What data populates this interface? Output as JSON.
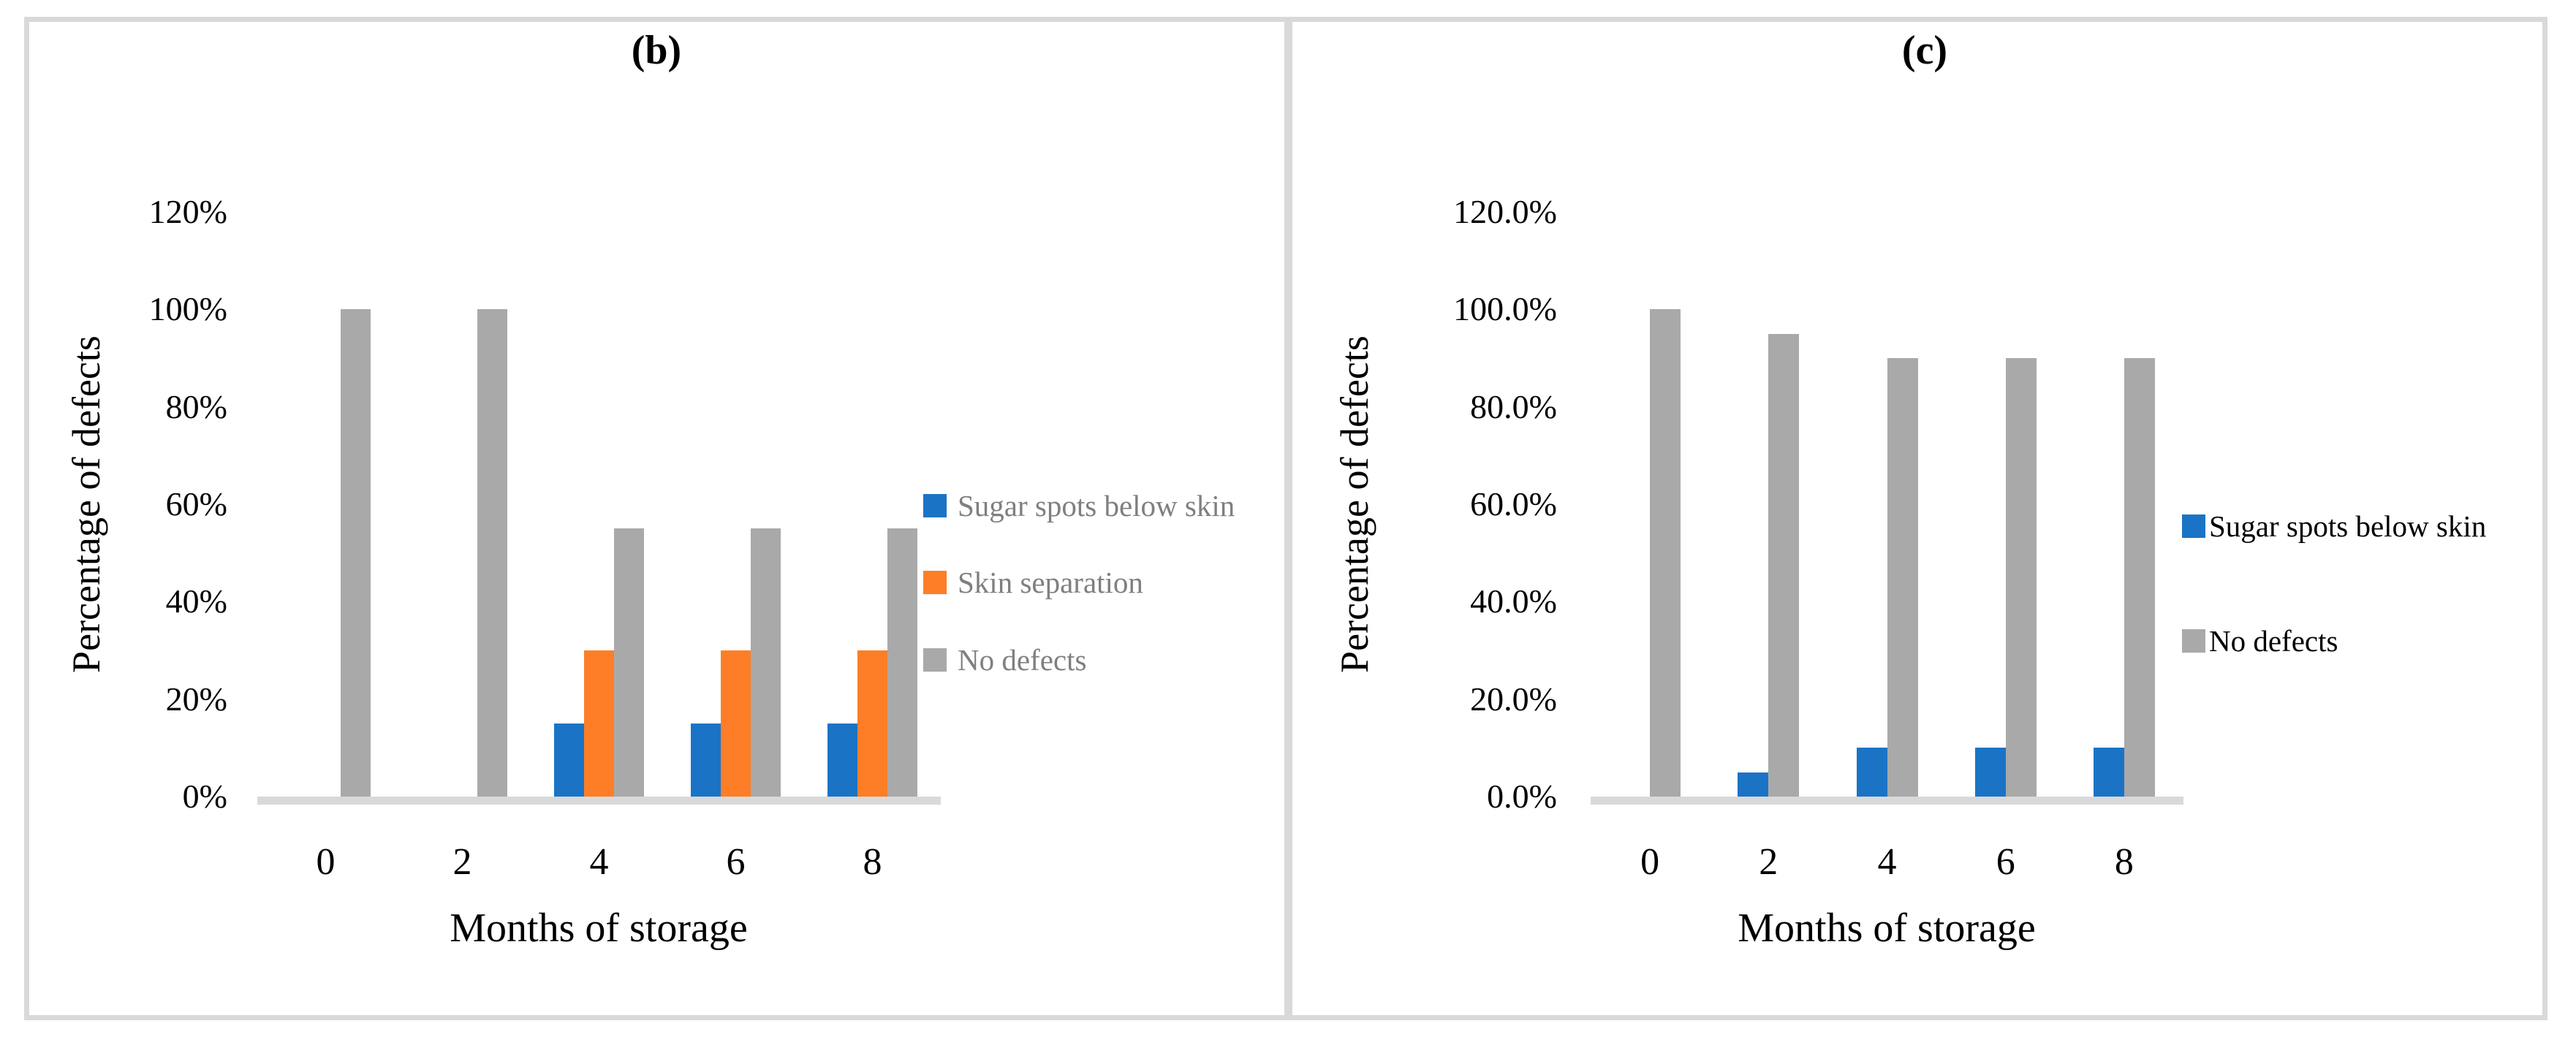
{
  "figure": {
    "background": "#FFFFFF",
    "frame_color": "#D9D9D9",
    "divider_color": "#D9D9D9"
  },
  "chart_data": [
    {
      "type": "bar",
      "panel_label": "(b)",
      "xlabel": "Months of storage",
      "ylabel": "Percentage of defects",
      "categories": [
        "0",
        "2",
        "4",
        "6",
        "8"
      ],
      "series": [
        {
          "name": "Sugar spots below skin",
          "color": "#1B73C6",
          "values": [
            0,
            0,
            15,
            15,
            15
          ]
        },
        {
          "name": "Skin separation",
          "color": "#FD7E27",
          "values": [
            0,
            0,
            30,
            30,
            30
          ]
        },
        {
          "name": "No defects",
          "color": "#A9A9A9",
          "values": [
            100,
            100,
            55,
            55,
            55
          ]
        }
      ],
      "value_unit": "percent",
      "ylim": [
        0,
        120
      ],
      "ytick_values": [
        0,
        20,
        40,
        60,
        80,
        100,
        120
      ],
      "ytick_labels": [
        "0%",
        "20%",
        "40%",
        "60%",
        "80%",
        "100%",
        "120%"
      ],
      "grid": false,
      "legend_position": "right",
      "legend_text_color": "#7F7F7F",
      "axis_line_color": "#D9D9D9"
    },
    {
      "type": "bar",
      "panel_label": "(c)",
      "xlabel": "Months of storage",
      "ylabel": "Percentage of defects",
      "categories": [
        "0",
        "2",
        "4",
        "6",
        "8"
      ],
      "series": [
        {
          "name": "Sugar spots below skin",
          "color": "#1B73C6",
          "values": [
            0,
            5,
            10,
            10,
            10
          ]
        },
        {
          "name": "No defects",
          "color": "#A9A9A9",
          "values": [
            100,
            95,
            90,
            90,
            90
          ]
        }
      ],
      "value_unit": "percent",
      "ylim": [
        0,
        120
      ],
      "ytick_values": [
        0,
        20,
        40,
        60,
        80,
        100,
        120
      ],
      "ytick_labels": [
        "0.0%",
        "20.0%",
        "40.0%",
        "60.0%",
        "80.0%",
        "100.0%",
        "120.0%"
      ],
      "grid": false,
      "legend_position": "right",
      "legend_text_color": "#000000",
      "axis_line_color": "#D9D9D9"
    }
  ]
}
